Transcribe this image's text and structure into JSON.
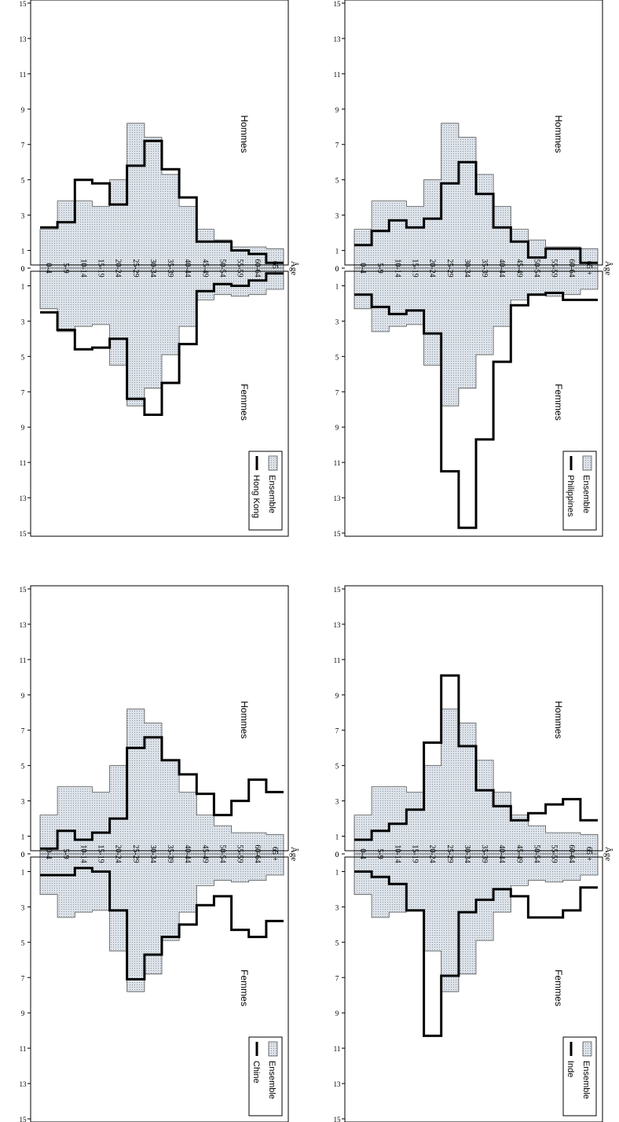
{
  "chart_data": {
    "type": "population_pyramid",
    "age_axis_label": "Âge",
    "age_groups": [
      "65 +",
      "60-64",
      "55-59",
      "50-54",
      "45-49",
      "40-44",
      "35-39",
      "30-34",
      "25-29",
      "20-24",
      "15-19",
      "10-14",
      "5-9",
      "0-4"
    ],
    "x_ticks": [
      "0",
      "1",
      "3",
      "5",
      "7",
      "9",
      "11",
      "13",
      "15"
    ],
    "xlim": [
      0,
      15
    ],
    "male_label": "Hommes",
    "female_label": "Femmes",
    "reference": {
      "name": "Ensemble",
      "color": "#dde3e9",
      "men": [
        1.1,
        1.2,
        1.2,
        1.6,
        2.2,
        3.5,
        5.3,
        7.4,
        8.2,
        5.0,
        3.5,
        3.8,
        3.8,
        2.2
      ],
      "women": [
        1.2,
        1.5,
        1.6,
        1.5,
        1.8,
        3.3,
        4.9,
        6.8,
        7.8,
        5.5,
        3.2,
        3.3,
        3.6,
        2.3
      ]
    },
    "panels": [
      {
        "id": "chine",
        "series_name": "Chine",
        "men": [
          3.5,
          4.2,
          3.0,
          2.2,
          3.4,
          4.5,
          5.3,
          6.6,
          6.0,
          2.0,
          1.2,
          0.8,
          1.3,
          0.3
        ],
        "women": [
          3.8,
          4.7,
          4.3,
          2.4,
          2.9,
          4.0,
          4.7,
          5.7,
          7.1,
          3.2,
          1.0,
          0.8,
          1.2,
          1.2
        ]
      },
      {
        "id": "hongkong",
        "series_name": "Hong Kong",
        "men": [
          0.3,
          0.8,
          1.0,
          1.5,
          1.5,
          4.0,
          5.6,
          7.2,
          5.8,
          3.6,
          4.8,
          5.0,
          2.6,
          2.3
        ],
        "women": [
          0.3,
          0.7,
          1.0,
          0.9,
          1.3,
          4.3,
          6.5,
          8.3,
          7.4,
          4.0,
          4.5,
          4.6,
          3.5,
          2.5
        ]
      },
      {
        "id": "inde",
        "series_name": "Inde",
        "men": [
          1.9,
          3.1,
          2.8,
          2.3,
          1.9,
          2.7,
          3.6,
          6.1,
          10.1,
          6.3,
          2.5,
          1.7,
          1.3,
          0.8
        ],
        "women": [
          1.9,
          3.2,
          3.6,
          3.6,
          2.4,
          2.0,
          2.6,
          3.3,
          6.9,
          10.3,
          3.2,
          1.7,
          1.3,
          1.0
        ]
      },
      {
        "id": "philippines",
        "series_name": "Philippines",
        "men": [
          0.3,
          1.1,
          1.1,
          0.6,
          1.5,
          2.3,
          4.2,
          6.0,
          4.8,
          2.8,
          2.3,
          2.7,
          2.1,
          1.3
        ],
        "women": [
          1.8,
          1.8,
          1.4,
          1.5,
          2.1,
          5.3,
          9.7,
          14.7,
          11.5,
          3.7,
          2.4,
          2.6,
          2.2,
          1.5
        ]
      }
    ]
  }
}
